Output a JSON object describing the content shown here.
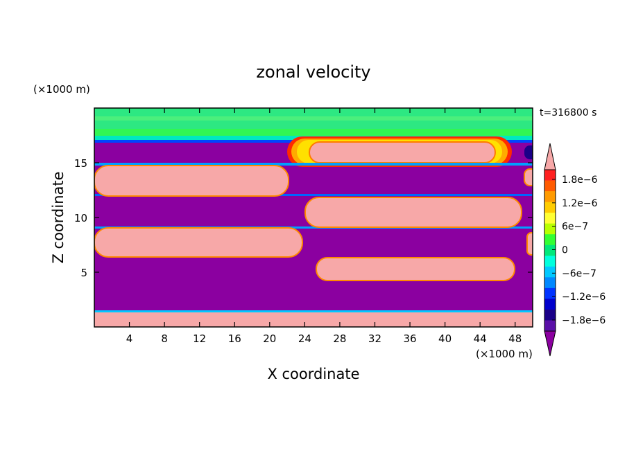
{
  "chart_data": {
    "type": "heatmap",
    "title": "zonal velocity",
    "xlabel": "X coordinate",
    "ylabel": "Z coordinate",
    "x_unit": "(×1000 m)",
    "y_unit": "(×1000 m)",
    "time_label": "t=316800 s",
    "xlim": [
      0,
      50
    ],
    "ylim": [
      0,
      20
    ],
    "x_ticks": [
      4,
      8,
      12,
      16,
      20,
      24,
      28,
      32,
      36,
      40,
      44,
      48
    ],
    "y_ticks": [
      5,
      10,
      15
    ],
    "colorbar": {
      "labels": [
        "1.8e−6",
        "1.2e−6",
        "6e−7",
        "0",
        "−6e−7",
        "−1.2e−6",
        "−1.8e−6"
      ],
      "colors": [
        "#ff2020",
        "#ff5a00",
        "#ff9a00",
        "#ffcc00",
        "#ffff33",
        "#b8ff00",
        "#33ff33",
        "#00e87a",
        "#00ffdd",
        "#00c8ff",
        "#0088ff",
        "#0033ff",
        "#0000cc",
        "#1a0088",
        "#5a10a8"
      ],
      "top_extend_color": "#f7a8a8",
      "bottom_extend_color": "#8b00a0"
    },
    "fields": {
      "positive_color": "#f7a8a8",
      "negative_color": "#8b00a0",
      "background_color": "#8b00a0",
      "top_band_color": "#2de882"
    }
  }
}
